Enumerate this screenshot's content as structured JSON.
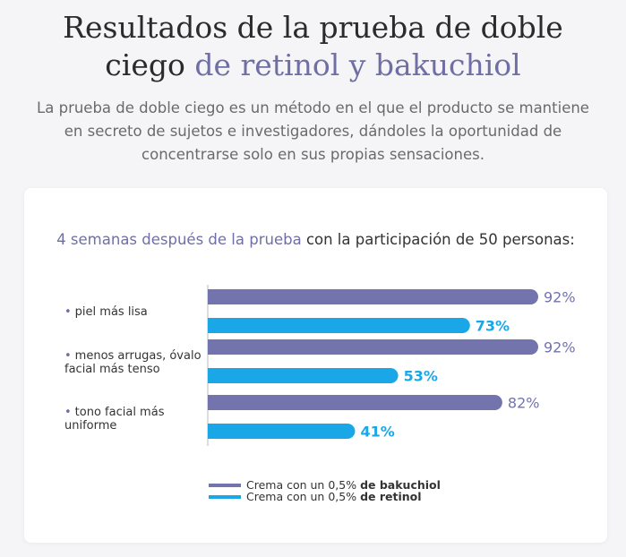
{
  "header": {
    "title_line1": "Resultados de la prueba de doble",
    "title_line2_plain": "ciego",
    "title_line2_accent": "de retinol y bakuchiol",
    "intro": "La prueba de doble ciego es un método en el que el producto se mantiene en secreto de sujetos e investigadores, dándoles la oportunidad de concentrarse solo en sus propias sensaciones."
  },
  "chart_data": {
    "type": "bar",
    "orientation": "horizontal",
    "title_accent": "4 semanas después de la prueba",
    "title_rest": "con la participación de 50 personas:",
    "categories": [
      "piel más lisa",
      "menos arrugas, óvalo facial más tenso",
      "tono facial más uniforme"
    ],
    "series": [
      {
        "name": "Crema con un 0,5% de bakuchiol",
        "color": "#7373ad",
        "values": [
          92,
          92,
          82
        ]
      },
      {
        "name": "Crema con un 0,5% de retinol",
        "color": "#1aa7e8",
        "values": [
          73,
          53,
          41
        ]
      }
    ],
    "value_suffix": "%",
    "xlim": [
      0,
      100
    ],
    "grid": false,
    "legend_position": "bottom"
  },
  "legend": [
    {
      "prefix": "Crema con un 0,5%",
      "bold": "de bakuchiol",
      "color": "#7373ad"
    },
    {
      "prefix": "Crema con un 0,5%",
      "bold": "de retinol",
      "color": "#1aa7e8"
    }
  ]
}
